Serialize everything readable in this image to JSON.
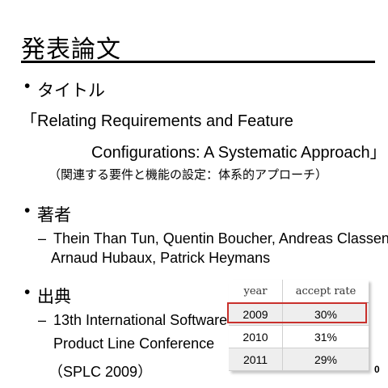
{
  "slide": {
    "title": "発表論文",
    "page_number": "0"
  },
  "sections": {
    "title_section": {
      "bullet": "•",
      "heading": "タイトル",
      "paper_title_line1": "「Relating Requirements and Feature",
      "paper_title_line2": "Configurations: A Systematic Approach」",
      "translation": "（関連する要件と機能の設定：体系的アプローチ）"
    },
    "authors_section": {
      "bullet": "•",
      "heading": "著者",
      "dash": "–",
      "authors_line1": "Thein Than Tun, Quentin Boucher, Andreas Classen,",
      "authors_line2": "Arnaud Hubaux, Patrick Heymans"
    },
    "source_section": {
      "bullet": "•",
      "heading": "出典",
      "dash": "–",
      "source_line1": "13th International Software",
      "source_line2": "Product Line Conference",
      "source_line3": "（SPLC 2009）"
    }
  },
  "acceptance_table": {
    "headers": [
      "year",
      "accept rate"
    ],
    "rows": [
      [
        "2009",
        "30%"
      ],
      [
        "2010",
        "31%"
      ],
      [
        "2011",
        "29%"
      ]
    ],
    "highlight_color": "#c9302c"
  }
}
